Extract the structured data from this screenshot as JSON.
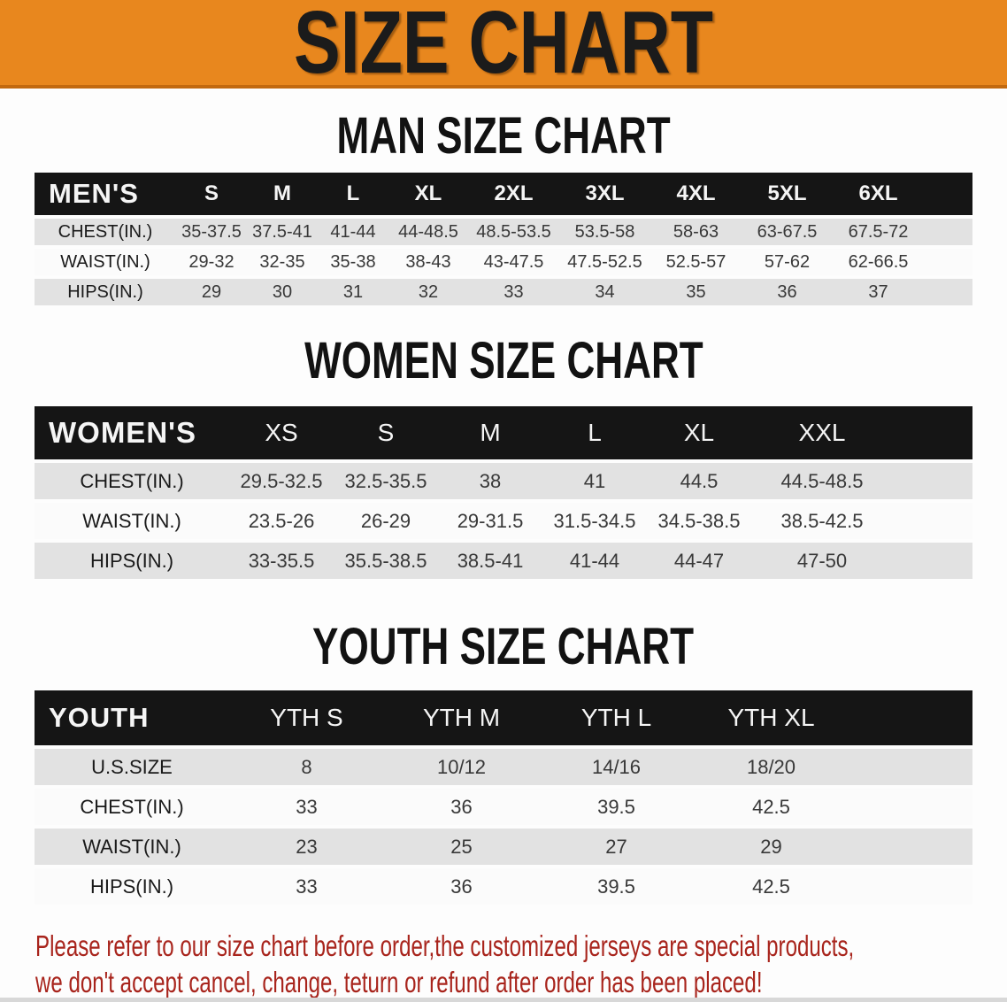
{
  "banner": {
    "title": "SIZE CHART",
    "bg_color": "#E8871E",
    "edge_color": "#C2690F"
  },
  "sections": [
    {
      "heading": "MAN SIZE CHART",
      "group_label": "MEN'S",
      "columns": [
        "S",
        "M",
        "L",
        "XL",
        "2XL",
        "3XL",
        "4XL",
        "5XL",
        "6XL"
      ],
      "rows": [
        {
          "label": "CHEST(IN.)",
          "values": [
            "35-37.5",
            "37.5-41",
            "41-44",
            "44-48.5",
            "48.5-53.5",
            "53.5-58",
            "58-63",
            "63-67.5",
            "67.5-72"
          ]
        },
        {
          "label": "WAIST(IN.)",
          "values": [
            "29-32",
            "32-35",
            "35-38",
            "38-43",
            "43-47.5",
            "47.5-52.5",
            "52.5-57",
            "57-62",
            "62-66.5"
          ]
        },
        {
          "label": "HIPS(IN.)",
          "values": [
            "29",
            "30",
            "31",
            "32",
            "33",
            "34",
            "35",
            "36",
            "37"
          ]
        }
      ]
    },
    {
      "heading": "WOMEN SIZE CHART",
      "group_label": "WOMEN'S",
      "columns": [
        "XS",
        "S",
        "M",
        "L",
        "XL",
        "XXL"
      ],
      "rows": [
        {
          "label": "CHEST(IN.)",
          "values": [
            "29.5-32.5",
            "32.5-35.5",
            "38",
            "41",
            "44.5",
            "44.5-48.5"
          ]
        },
        {
          "label": "WAIST(IN.)",
          "values": [
            "23.5-26",
            "26-29",
            "29-31.5",
            "31.5-34.5",
            "34.5-38.5",
            "38.5-42.5"
          ]
        },
        {
          "label": "HIPS(IN.)",
          "values": [
            "33-35.5",
            "35.5-38.5",
            "38.5-41",
            "41-44",
            "44-47",
            "47-50"
          ]
        }
      ]
    },
    {
      "heading": "YOUTH SIZE CHART",
      "group_label": "YOUTH",
      "columns": [
        "YTH S",
        "YTH M",
        "YTH L",
        "YTH XL"
      ],
      "rows": [
        {
          "label": "U.S.SIZE",
          "values": [
            "8",
            "10/12",
            "14/16",
            "18/20"
          ]
        },
        {
          "label": "CHEST(IN.)",
          "values": [
            "33",
            "36",
            "39.5",
            "42.5"
          ]
        },
        {
          "label": "WAIST(IN.)",
          "values": [
            "23",
            "25",
            "27",
            "29"
          ]
        },
        {
          "label": "HIPS(IN.)",
          "values": [
            "33",
            "36",
            "39.5",
            "42.5"
          ]
        }
      ]
    }
  ],
  "footer": {
    "line1": "Please refer to our size chart before order,the customized jerseys are special products,",
    "line2": "we don't accept cancel, change, teturn or refund after order has been placed!",
    "text_color": "#A8241C"
  },
  "colors": {
    "table_header_bg": "#151515",
    "alt_row_bg": "#E2E2E2",
    "row_text": "#383838"
  }
}
